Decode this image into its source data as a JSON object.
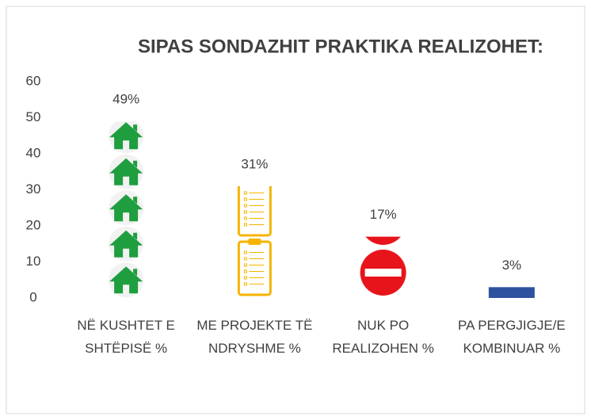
{
  "chart_data": {
    "type": "bar",
    "title": "SIPAS SONDAZHIT PRAKTIKA REALIZOHET:",
    "categories": [
      "NË KUSHTET E SHTËPISË %",
      "ME PROJEKTE TË NDRYSHME %",
      "NUK PO REALIZOHEN %",
      "PA PERGJIGJE/E KOMBINUAR %"
    ],
    "values": [
      49,
      31,
      17,
      3
    ],
    "value_labels": [
      "49%",
      "31%",
      "17%",
      "3%"
    ],
    "colors": [
      "#1e9e3e",
      "#f5b400",
      "#e8141b",
      "#2f52a0"
    ],
    "ylim": [
      0,
      60
    ],
    "yticks": [
      0,
      10,
      20,
      30,
      40,
      50,
      60
    ],
    "grid": false
  }
}
